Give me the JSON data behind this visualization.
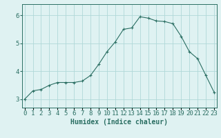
{
  "x": [
    0,
    1,
    2,
    3,
    4,
    5,
    6,
    7,
    8,
    9,
    10,
    11,
    12,
    13,
    14,
    15,
    16,
    17,
    18,
    19,
    20,
    21,
    22,
    23
  ],
  "y": [
    3.0,
    3.3,
    3.35,
    3.5,
    3.6,
    3.6,
    3.6,
    3.65,
    3.85,
    4.25,
    4.7,
    5.05,
    5.5,
    5.55,
    5.95,
    5.9,
    5.8,
    5.78,
    5.7,
    5.25,
    4.7,
    4.45,
    3.85,
    3.25
  ],
  "line_color": "#2a6e62",
  "marker": "+",
  "marker_size": 3,
  "bg_color": "#dff2f2",
  "grid_color": "#b0d8d8",
  "xlabel": "Humidex (Indice chaleur)",
  "xlabel_fontsize": 7,
  "tick_fontsize": 6.5,
  "ylim": [
    2.7,
    6.4
  ],
  "yticks": [
    3,
    4,
    5,
    6
  ],
  "xtick_labels": [
    "0",
    "1",
    "2",
    "3",
    "4",
    "5",
    "6",
    "7",
    "8",
    "9",
    "10",
    "11",
    "12",
    "13",
    "14",
    "15",
    "16",
    "17",
    "18",
    "19",
    "20",
    "21",
    "22",
    "23"
  ]
}
